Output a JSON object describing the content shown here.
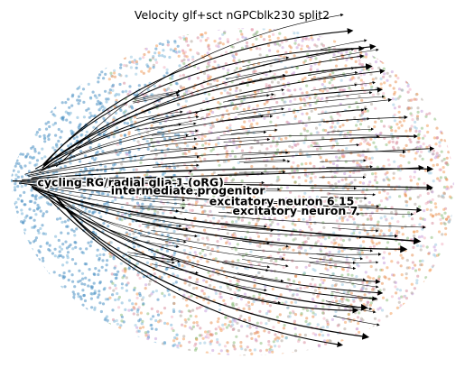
{
  "chart_data": {
    "type": "scatter",
    "title": "Velocity glf+sct nGPCblk230 split2",
    "xlabel": "",
    "ylabel": "",
    "axes_visible": false,
    "grid": false,
    "embedding": "2D velocity stream plot over cell scatter",
    "cluster_labels": [
      {
        "name": "cycling RG/radial glia 1 (oRG)",
        "x": -0.88,
        "y": 0.02
      },
      {
        "name": "intermediate progenitor",
        "x": -0.55,
        "y": -0.03
      },
      {
        "name": "excitatory neuron 6 15",
        "x": 0.22,
        "y": -0.1
      },
      {
        "name": "excitatory neuron 7",
        "x": 0.28,
        "y": -0.16
      }
    ],
    "point_colors": [
      "#4a90c2",
      "#7bb6d9",
      "#f4a261",
      "#e8945a",
      "#8fbf7f",
      "#d98fa0",
      "#c9a0dc",
      "#b5a9a0",
      "#9ecae1",
      "#f2b5c4"
    ],
    "stream_color": "#000000"
  }
}
